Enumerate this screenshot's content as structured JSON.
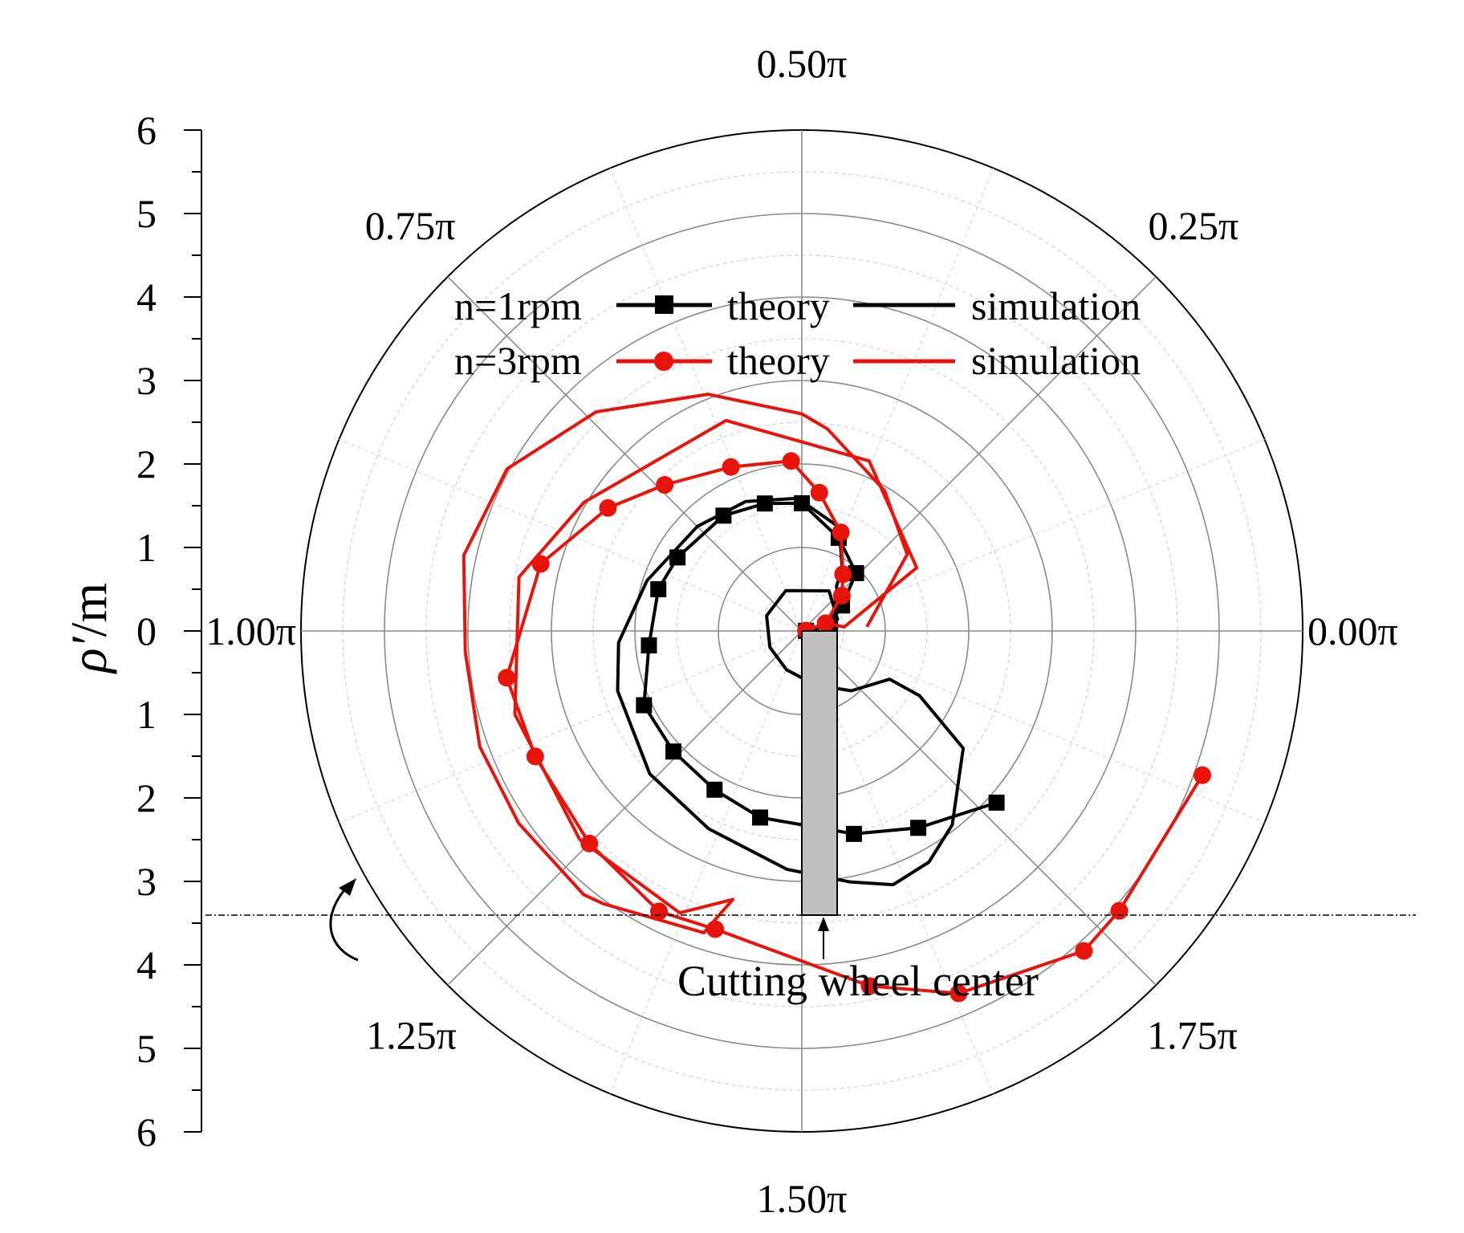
{
  "chart_data": {
    "type": "polar-line",
    "ylabel_symbol": "ρ′",
    "ylabel_unit": "/m",
    "r_ticks": [
      "6",
      "5",
      "4",
      "3",
      "2",
      "1",
      "0",
      "1",
      "2",
      "3",
      "4",
      "5",
      "6"
    ],
    "r_range": [
      0,
      6
    ],
    "angle_labels": [
      {
        "angle_pi": 0.0,
        "text": "0.00π"
      },
      {
        "angle_pi": 0.25,
        "text": "0.25π"
      },
      {
        "angle_pi": 0.5,
        "text": "0.50π"
      },
      {
        "angle_pi": 0.75,
        "text": "0.75π"
      },
      {
        "angle_pi": 1.0,
        "text": "1.00π"
      },
      {
        "angle_pi": 1.25,
        "text": "1.25π"
      },
      {
        "angle_pi": 1.5,
        "text": "1.50π"
      },
      {
        "angle_pi": 1.75,
        "text": "1.75π"
      }
    ],
    "legend": {
      "row1_label": "n=1rpm",
      "row2_label": "n=3rpm",
      "theory": "theory",
      "simulation": "simulation"
    },
    "annotation": "Cutting wheel center",
    "colors": {
      "n1": "#000000",
      "n3": "#e8140c",
      "bar": "#c0c0c0"
    },
    "series": [
      {
        "name": "n=1rpm theory",
        "color": "#000000",
        "marker": "square",
        "points": [
          [
            0.05,
            0.01
          ],
          [
            0.35,
            0.08
          ],
          [
            0.57,
            0.18
          ],
          [
            0.95,
            0.26
          ],
          [
            1.2,
            0.38
          ],
          [
            1.53,
            0.5
          ],
          [
            1.59,
            0.59
          ],
          [
            1.67,
            0.69
          ],
          [
            1.73,
            0.83
          ],
          [
            1.79,
            0.91
          ],
          [
            1.84,
            1.03
          ],
          [
            2.09,
            1.14
          ],
          [
            2.11,
            1.24
          ],
          [
            2.17,
            1.34
          ],
          [
            2.29,
            1.43
          ],
          [
            2.51,
            1.58
          ],
          [
            2.74,
            1.67
          ],
          [
            3.11,
            1.77
          ]
        ]
      },
      {
        "name": "n=1rpm simulation",
        "color": "#000000",
        "marker": "none",
        "points": [
          [
            0.05,
            0.02
          ],
          [
            0.3,
            0.06
          ],
          [
            0.5,
            0.17
          ],
          [
            0.68,
            0.29
          ],
          [
            0.9,
            0.32
          ],
          [
            1.32,
            0.39
          ],
          [
            1.59,
            0.51
          ],
          [
            1.69,
            0.63
          ],
          [
            1.77,
            0.75
          ],
          [
            1.95,
            0.9
          ],
          [
            2.2,
            1.02
          ],
          [
            2.32,
            1.1
          ],
          [
            2.5,
            1.24
          ],
          [
            2.62,
            1.36
          ],
          [
            2.86,
            1.48
          ],
          [
            3.06,
            1.56
          ],
          [
            3.23,
            1.61
          ],
          [
            3.16,
            1.66
          ],
          [
            2.94,
            1.71
          ],
          [
            2.39,
            1.8
          ],
          [
            1.61,
            1.84
          ],
          [
            1.2,
            1.84
          ],
          [
            0.93,
            1.72
          ],
          [
            0.67,
            1.58
          ],
          [
            0.5,
            1.38
          ],
          [
            0.43,
            1.15
          ],
          [
            0.46,
            0.87
          ],
          [
            0.52,
            0.62
          ],
          [
            0.58,
            0.31
          ],
          [
            0.45,
            0.1
          ],
          [
            0.15,
            0.02
          ]
        ]
      },
      {
        "name": "n=3rpm theory",
        "color": "#e8140c",
        "marker": "circle",
        "points": [
          [
            0.05,
            0.03
          ],
          [
            0.3,
            0.1
          ],
          [
            0.64,
            0.23
          ],
          [
            0.84,
            0.3
          ],
          [
            1.27,
            0.38
          ],
          [
            1.67,
            0.46
          ],
          [
            2.04,
            0.52
          ],
          [
            2.14,
            0.63
          ],
          [
            2.4,
            0.74
          ],
          [
            2.75,
            0.82
          ],
          [
            3.23,
            0.92
          ],
          [
            3.58,
            1.05
          ],
          [
            3.53,
            1.14
          ],
          [
            3.6,
            1.25
          ],
          [
            3.77,
            1.35
          ],
          [
            3.72,
            1.41
          ],
          [
            4.33,
            1.56
          ],
          [
            4.73,
            1.63
          ],
          [
            5.11,
            1.73
          ],
          [
            5.07,
            1.77
          ],
          [
            5.1,
            1.89
          ]
        ]
      },
      {
        "name": "n=3rpm simulation",
        "color": "#e8140c",
        "marker": "none",
        "points": [
          [
            0.78,
            0.02
          ],
          [
            1.56,
            0.2
          ],
          [
            1.95,
            0.33
          ],
          [
            2.44,
            0.46
          ],
          [
            2.6,
            0.5
          ],
          [
            3.05,
            0.62
          ],
          [
            3.6,
            0.74
          ],
          [
            4.03,
            0.84
          ],
          [
            4.15,
            0.93
          ],
          [
            4.04,
            1.02
          ],
          [
            4.1,
            1.11
          ],
          [
            4.1,
            1.19
          ],
          [
            4.1,
            1.28
          ],
          [
            4.04,
            1.3
          ],
          [
            3.8,
            1.4
          ],
          [
            3.32,
            1.42
          ],
          [
            3.68,
            1.37
          ],
          [
            3.65,
            1.24
          ],
          [
            3.58,
            1.09
          ],
          [
            3.45,
            0.94
          ],
          [
            3.03,
            0.83
          ],
          [
            2.68,
            0.61
          ],
          [
            2.19,
            0.38
          ],
          [
            1.57,
            0.16
          ],
          [
            0.51,
            0.03
          ],
          [
            0.3,
            0.1
          ]
        ]
      }
    ]
  }
}
